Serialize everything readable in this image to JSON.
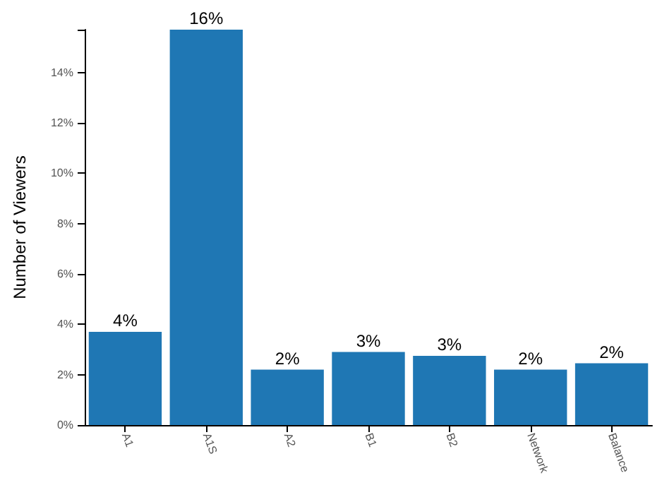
{
  "chart_data": {
    "type": "bar",
    "ylabel": "Number of Viewers",
    "categories": [
      "A1",
      "A1S",
      "A2",
      "B1",
      "B2",
      "Network",
      "Balance"
    ],
    "values": [
      3.7,
      15.7,
      2.2,
      2.9,
      2.75,
      2.2,
      2.45
    ],
    "value_labels": [
      "4%",
      "16%",
      "2%",
      "3%",
      "3%",
      "2%",
      "2%"
    ],
    "color": "#1f77b4",
    "ylim": [
      0,
      15.7
    ],
    "yticks": [
      {
        "value": 0,
        "label": "0%"
      },
      {
        "value": 2,
        "label": "2%"
      },
      {
        "value": 4,
        "label": "4%"
      },
      {
        "value": 6,
        "label": "6%"
      },
      {
        "value": 8,
        "label": "8%"
      },
      {
        "value": 10,
        "label": "10%"
      },
      {
        "value": 12,
        "label": "12%"
      },
      {
        "value": 14,
        "label": "14%"
      },
      {
        "value": 15.7,
        "label": null
      }
    ],
    "grid": false
  }
}
